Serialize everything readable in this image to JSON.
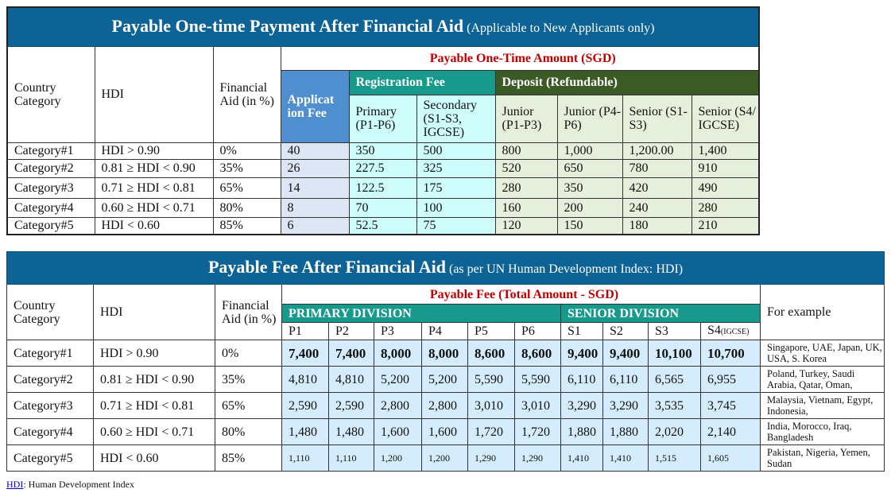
{
  "table1": {
    "title": "Payable One-time Payment After Financial Aid",
    "subtitle": "(Applicable to New Applicants only)",
    "col_country": "Country Category",
    "col_hdi": "HDI",
    "col_aid": "Financial Aid (in %)",
    "amount_header": "Payable One-Time Amount (SGD)",
    "application_fee": "Applicat ion Fee",
    "registration_fee": "Registration Fee",
    "deposit": "Deposit (Refundable)",
    "reg_cols": [
      "Primary (P1-P6)",
      "Secondary (S1-S3, IGCSE)"
    ],
    "dep_cols": [
      "Junior (P1-P3)",
      "Junior (P4-P6)",
      "Senior (S1-S3)",
      "Senior (S4/ IGCSE)"
    ],
    "rows": [
      [
        "Category#1",
        "HDI > 0.90",
        "0%",
        "40",
        "350",
        "500",
        "800",
        "1,000",
        "1,200.00",
        "1,400"
      ],
      [
        "Category#2",
        "0.81 ≥ HDI < 0.90",
        "35%",
        "26",
        "227.5",
        "325",
        "520",
        "650",
        "780",
        "910"
      ],
      [
        "Category#3",
        "0.71 ≥ HDI < 0.81",
        "65%",
        "14",
        "122.5",
        "175",
        "280",
        "350",
        "420",
        "490"
      ],
      [
        "Category#4",
        "0.60 ≥ HDI < 0.71",
        "80%",
        "8",
        "70",
        "100",
        "160",
        "200",
        "240",
        "280"
      ],
      [
        "Category#5",
        "HDI < 0.60",
        "85%",
        "6",
        "52.5",
        "75",
        "120",
        "150",
        "180",
        "210"
      ]
    ]
  },
  "table2": {
    "title": "Payable Fee After Financial Aid",
    "subtitle": "(as per UN Human Development Index: HDI)",
    "col_country": "Country Category",
    "col_hdi": "HDI",
    "col_aid": "Financial Aid (in %)",
    "amount_header": "Payable Fee (Total Amount - SGD)",
    "primary_division": "PRIMARY DIVISION",
    "senior_division": "SENIOR DIVISION",
    "for_example": "For example",
    "grades": [
      "P1",
      "P2",
      "P3",
      "P4",
      "P5",
      "P6",
      "S1",
      "S2",
      "S3",
      "S4"
    ],
    "s4_suffix": "(IGCSE)",
    "rows": [
      {
        "cells": [
          "Category#1",
          "HDI > 0.90",
          "0%"
        ],
        "fees": [
          "7,400",
          "7,400",
          "8,000",
          "8,000",
          "8,600",
          "8,600",
          "9,400",
          "9,400",
          "10,100",
          "10,700"
        ],
        "example": "Singapore, UAE, Japan, UK, USA, S. Korea"
      },
      {
        "cells": [
          "Category#2",
          "0.81 ≥ HDI < 0.90",
          "35%"
        ],
        "fees": [
          "4,810",
          "4,810",
          "5,200",
          "5,200",
          "5,590",
          "5,590",
          "6,110",
          "6,110",
          "6,565",
          "6,955"
        ],
        "example": "Poland, Turkey, Saudi Arabia, Qatar, Oman,"
      },
      {
        "cells": [
          "Category#3",
          "0.71 ≥ HDI < 0.81",
          "65%"
        ],
        "fees": [
          "2,590",
          "2,590",
          "2,800",
          "2,800",
          "3,010",
          "3,010",
          "3,290",
          "3,290",
          "3,535",
          "3,745"
        ],
        "example": "Malaysia, Vietnam, Egypt, Indonesia,"
      },
      {
        "cells": [
          "Category#4",
          "0.60 ≥ HDI < 0.71",
          "80%"
        ],
        "fees": [
          "1,480",
          "1,480",
          "1,600",
          "1,600",
          "1,720",
          "1,720",
          "1,880",
          "1,880",
          "2,020",
          "2,140"
        ],
        "example": "India, Morocco, Iraq, Bangladesh"
      },
      {
        "cells": [
          "Category#5",
          "HDI < 0.60",
          "85%"
        ],
        "fees": [
          "1,110",
          "1,110",
          "1,200",
          "1,200",
          "1,290",
          "1,290",
          "1,410",
          "1,410",
          "1,515",
          "1,605"
        ],
        "example": "Pakistan, Nigeria, Yemen, Sudan"
      }
    ]
  },
  "footnote": {
    "link": "HDI",
    "text": ": Human Development Index"
  },
  "colors": {
    "header_blue": "#0d6396",
    "teal": "#17998c",
    "deposit_green": "#3b5a25",
    "accent_red": "#c00000"
  }
}
